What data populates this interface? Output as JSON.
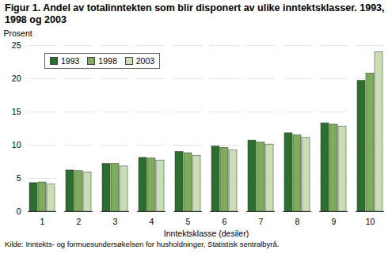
{
  "chart_data": {
    "type": "bar",
    "title": "Figur 1. Andel av totalinntekten som blir disponert av ulike inntektsklasser. 1993, 1998 og 2003",
    "y_label": "Prosent",
    "x_label": "Inntektsklasse (desiler)",
    "caption": "Kilde: Inntekts- og formuesundersøkelsen for husholdninger, Statistisk sentralbyrå.",
    "categories": [
      "1",
      "2",
      "3",
      "4",
      "5",
      "6",
      "7",
      "8",
      "9",
      "10"
    ],
    "series": [
      {
        "name": "1993",
        "color": "#2b6e2e",
        "values": [
          4.3,
          6.2,
          7.2,
          8.1,
          9.0,
          9.8,
          10.7,
          11.8,
          13.3,
          19.7
        ]
      },
      {
        "name": "1998",
        "color": "#7eab5c",
        "values": [
          4.4,
          6.1,
          7.2,
          8.0,
          8.8,
          9.6,
          10.4,
          11.5,
          13.1,
          20.8
        ]
      },
      {
        "name": "2003",
        "color": "#c9deb6",
        "values": [
          4.1,
          5.9,
          6.8,
          7.7,
          8.4,
          9.2,
          10.1,
          11.1,
          12.8,
          24.0
        ]
      }
    ],
    "ylim": [
      0,
      25
    ],
    "yticks": [
      0,
      5,
      10,
      15,
      20,
      25
    ],
    "grid": true,
    "legend": "upper left"
  }
}
